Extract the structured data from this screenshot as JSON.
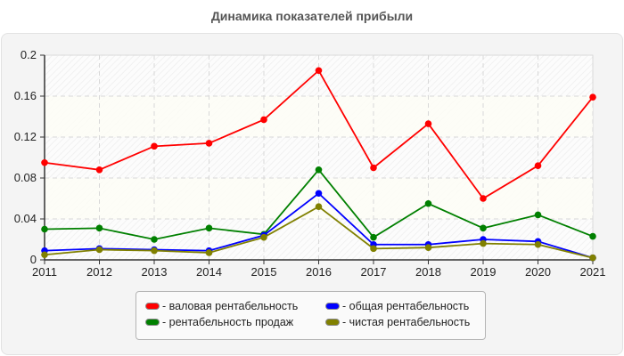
{
  "chart_data": {
    "type": "line",
    "title": "Динамика показателей прибыли",
    "xlabel": "",
    "ylabel": "",
    "x": [
      "2011",
      "2012",
      "2013",
      "2014",
      "2015",
      "2016",
      "2017",
      "2018",
      "2019",
      "2020",
      "2021"
    ],
    "ylim": [
      0,
      0.2
    ],
    "yticks": [
      "0",
      "0.04",
      "0.08",
      "0.12",
      "0.16",
      "0.2"
    ],
    "grid": true,
    "legend_position": "bottom",
    "series": [
      {
        "name": "валовая рентабельность",
        "color": "#ff0000",
        "values": [
          0.095,
          0.088,
          0.111,
          0.114,
          0.137,
          0.185,
          0.09,
          0.133,
          0.06,
          0.092,
          0.159
        ]
      },
      {
        "name": "рентабельность продаж",
        "color": "#008000",
        "values": [
          0.03,
          0.031,
          0.02,
          0.031,
          0.025,
          0.088,
          0.022,
          0.055,
          0.031,
          0.044,
          0.023
        ]
      },
      {
        "name": "общая рентабельность",
        "color": "#0000ff",
        "values": [
          0.009,
          0.011,
          0.01,
          0.009,
          0.024,
          0.065,
          0.015,
          0.015,
          0.02,
          0.018,
          0.002
        ]
      },
      {
        "name": "чистая рентабельность",
        "color": "#808000",
        "values": [
          0.005,
          0.01,
          0.009,
          0.007,
          0.022,
          0.052,
          0.011,
          0.012,
          0.016,
          0.015,
          0.002
        ]
      }
    ]
  },
  "legend": {
    "items": [
      {
        "label": "- валовая рентабельность",
        "color": "#ff0000"
      },
      {
        "label": "- общая рентабельность",
        "color": "#0000ff"
      },
      {
        "label": "- рентабельность продаж",
        "color": "#008000"
      },
      {
        "label": "- чистая рентабельность",
        "color": "#808000"
      }
    ]
  }
}
